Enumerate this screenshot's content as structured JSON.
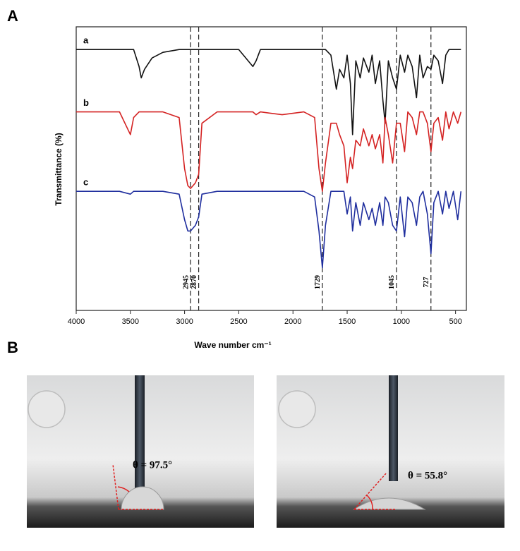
{
  "panel_labels": [
    "A",
    "B"
  ],
  "chart_data": {
    "type": "line",
    "xlabel": "Wave number cm⁻¹",
    "ylabel": "Transmittance (%)",
    "xlim": [
      4000,
      400
    ],
    "ylim": [
      0,
      100
    ],
    "xticks": [
      4000,
      3500,
      3000,
      2500,
      2000,
      1500,
      1000,
      500
    ],
    "vlines": [
      2945,
      2870,
      1729,
      1045,
      727
    ],
    "x": [
      4000,
      3800,
      3600,
      3500,
      3470,
      3420,
      3400,
      3370,
      3300,
      3200,
      3050,
      3000,
      2970,
      2945,
      2900,
      2870,
      2840,
      2700,
      2500,
      2370,
      2340,
      2300,
      2100,
      1900,
      1800,
      1760,
      1729,
      1700,
      1650,
      1600,
      1570,
      1530,
      1500,
      1470,
      1450,
      1420,
      1380,
      1350,
      1300,
      1270,
      1240,
      1200,
      1170,
      1150,
      1120,
      1080,
      1045,
      1010,
      970,
      940,
      900,
      860,
      830,
      800,
      760,
      727,
      700,
      660,
      620,
      590,
      560,
      520,
      480,
      450
    ],
    "series": [
      {
        "name": "a",
        "color": "#111111",
        "values": [
          92,
          92,
          92,
          92,
          92,
          86,
          82,
          85,
          89,
          91,
          92,
          92,
          92,
          92,
          92,
          92,
          92,
          92,
          92,
          86,
          88,
          92,
          92,
          92,
          92,
          92,
          92,
          92,
          90,
          78,
          85,
          82,
          90,
          80,
          62,
          88,
          82,
          89,
          84,
          90,
          80,
          88,
          74,
          66,
          88,
          82,
          78,
          90,
          84,
          90,
          86,
          75,
          90,
          82,
          86,
          85,
          90,
          88,
          80,
          90,
          92,
          92,
          92,
          92
        ]
      },
      {
        "name": "b",
        "color": "#d42222",
        "values": [
          70,
          70,
          70,
          62,
          68,
          70,
          70,
          70,
          70,
          70,
          68,
          50,
          44,
          43,
          45,
          48,
          66,
          70,
          70,
          70,
          69,
          70,
          69,
          70,
          68,
          50,
          42,
          52,
          66,
          66,
          62,
          58,
          45,
          54,
          50,
          60,
          58,
          64,
          58,
          62,
          57,
          62,
          52,
          68,
          62,
          52,
          66,
          66,
          56,
          70,
          68,
          62,
          70,
          70,
          66,
          56,
          66,
          68,
          60,
          70,
          64,
          70,
          66,
          70
        ]
      },
      {
        "name": "c",
        "color": "#1f2e9e",
        "values": [
          42,
          42,
          42,
          41,
          42,
          42,
          42,
          42,
          42,
          42,
          41,
          32,
          28,
          28,
          30,
          33,
          41,
          42,
          42,
          42,
          42,
          42,
          42,
          42,
          40,
          28,
          15,
          30,
          42,
          42,
          42,
          42,
          34,
          40,
          28,
          38,
          30,
          38,
          32,
          36,
          30,
          38,
          30,
          40,
          38,
          30,
          28,
          40,
          26,
          40,
          38,
          30,
          40,
          42,
          34,
          20,
          38,
          42,
          34,
          42,
          36,
          42,
          32,
          42
        ]
      }
    ]
  },
  "panel_b": {
    "angles": [
      "θ = 97.5°",
      "θ = 55.8°"
    ]
  }
}
